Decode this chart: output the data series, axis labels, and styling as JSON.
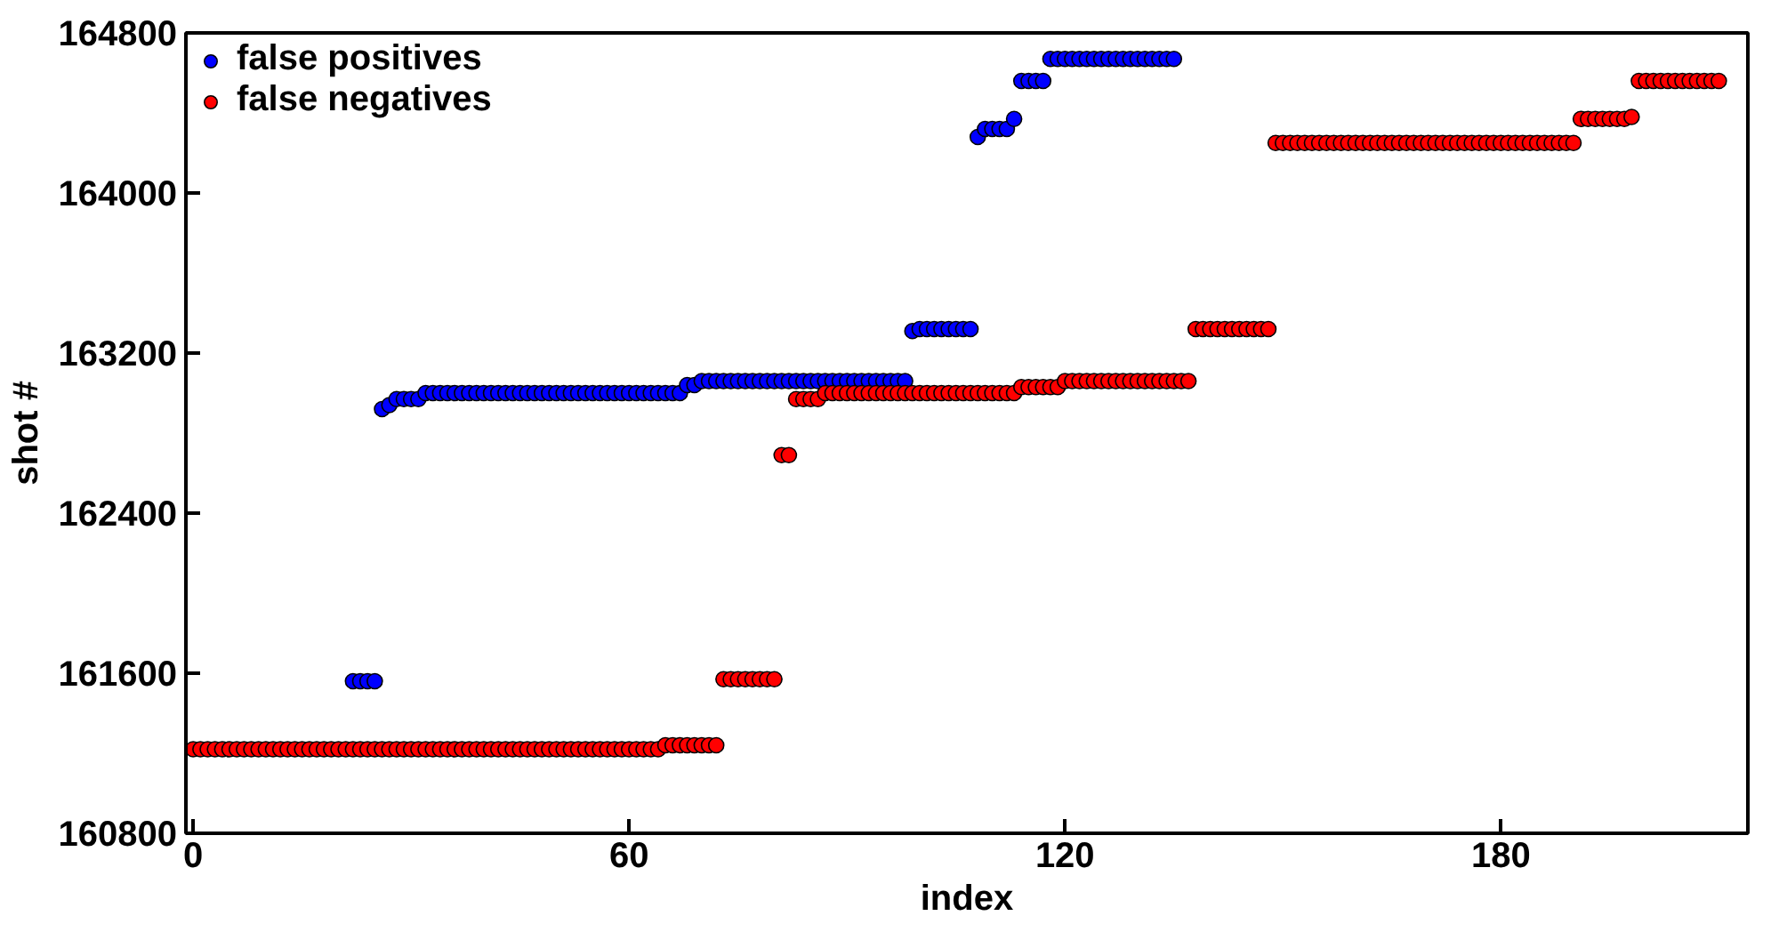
{
  "chart_data": {
    "type": "scatter",
    "xlabel": "index",
    "ylabel": "shot #",
    "xlim": [
      -1,
      214
    ],
    "ylim": [
      160800,
      164800
    ],
    "xticks": [
      0,
      60,
      120,
      180
    ],
    "yticks": [
      160800,
      161600,
      162400,
      163200,
      164000,
      164800
    ],
    "grid": false,
    "legend": "top left",
    "marker": "circle",
    "x": [
      0,
      1,
      2,
      3,
      4,
      5,
      6,
      7,
      8,
      9,
      10,
      11,
      12,
      13,
      14,
      15,
      16,
      17,
      18,
      19,
      20,
      21,
      22,
      23,
      24,
      25,
      26,
      27,
      28,
      29,
      30,
      31,
      32,
      33,
      34,
      35,
      36,
      37,
      38,
      39,
      40,
      41,
      42,
      43,
      44,
      45,
      46,
      47,
      48,
      49,
      50,
      51,
      52,
      53,
      54,
      55,
      56,
      57,
      58,
      59,
      60,
      61,
      62,
      63,
      64,
      65,
      66,
      67,
      68,
      69,
      70,
      71,
      72,
      73,
      74,
      75,
      76,
      77,
      78,
      79,
      80,
      81,
      82,
      83,
      84,
      85,
      86,
      87,
      88,
      89,
      90,
      91,
      92,
      93,
      94,
      95,
      96,
      97,
      98,
      99,
      100,
      101,
      102,
      103,
      104,
      105,
      106,
      107,
      108,
      109,
      110,
      111,
      112,
      113,
      114,
      115,
      116,
      117,
      118,
      119,
      120,
      121,
      122,
      123,
      124,
      125,
      126,
      127,
      128,
      129,
      130,
      131,
      132,
      133,
      134,
      135,
      136,
      137,
      138,
      139,
      140,
      141,
      142,
      143,
      144,
      145,
      146,
      147,
      148,
      149,
      150,
      151,
      152,
      153,
      154,
      155,
      156,
      157,
      158,
      159,
      160,
      161,
      162,
      163,
      164,
      165,
      166,
      167,
      168,
      169,
      170,
      171,
      172,
      173,
      174,
      175,
      176,
      177,
      178,
      179,
      180,
      181,
      182,
      183,
      184,
      185,
      186,
      187,
      188,
      189,
      190,
      191,
      192,
      193,
      194,
      195,
      196,
      197,
      198,
      199,
      200,
      201,
      202,
      203,
      204,
      205,
      206,
      207,
      208,
      209,
      210
    ],
    "series": [
      {
        "name": "false positives",
        "color": "#0000ff",
        "values": [
          null,
          null,
          null,
          null,
          null,
          null,
          null,
          null,
          null,
          null,
          null,
          null,
          null,
          null,
          null,
          null,
          null,
          null,
          null,
          null,
          null,
          null,
          161560,
          161560,
          161560,
          161560,
          162920,
          162940,
          162970,
          162970,
          162970,
          162970,
          163000,
          163000,
          163000,
          163000,
          163000,
          163000,
          163000,
          163000,
          163000,
          163000,
          163000,
          163000,
          163000,
          163000,
          163000,
          163000,
          163000,
          163000,
          163000,
          163000,
          163000,
          163000,
          163000,
          163000,
          163000,
          163000,
          163000,
          163000,
          163000,
          163000,
          163000,
          163000,
          163000,
          163000,
          163000,
          163000,
          163040,
          163040,
          163060,
          163060,
          163060,
          163060,
          163060,
          163060,
          163060,
          163060,
          163060,
          163060,
          163060,
          163060,
          163060,
          163060,
          163060,
          163060,
          163060,
          163060,
          163060,
          163060,
          163060,
          163060,
          163060,
          163060,
          163060,
          163060,
          163060,
          163060,
          163060,
          163310,
          163320,
          163320,
          163320,
          163320,
          163320,
          163320,
          163320,
          163320,
          164280,
          164320,
          164320,
          164320,
          164320,
          164370,
          164560,
          164560,
          164560,
          164560,
          164670,
          164670,
          164670,
          164670,
          164670,
          164670,
          164670,
          164670,
          164670,
          164670,
          164670,
          164670,
          164670,
          164670,
          164670,
          164670,
          164670,
          164670,
          null,
          null,
          null,
          null,
          null,
          null,
          null,
          null,
          null,
          null,
          null,
          null,
          null,
          null,
          null,
          null,
          null,
          null,
          null,
          null,
          null,
          null,
          null,
          null,
          null,
          null,
          null,
          null,
          null,
          null,
          null,
          null,
          null,
          null,
          null,
          null,
          null,
          null,
          null,
          null,
          null,
          null,
          null,
          null,
          null,
          null,
          null,
          null,
          null,
          null,
          null,
          null,
          null,
          null,
          null,
          null,
          null,
          null,
          null,
          null,
          null,
          null,
          null,
          null,
          null,
          null,
          null,
          null,
          null,
          null,
          null,
          null,
          null,
          null,
          null
        ]
      },
      {
        "name": "false negatives",
        "color": "#ff0000",
        "values": [
          161220,
          161220,
          161220,
          161220,
          161220,
          161220,
          161220,
          161220,
          161220,
          161220,
          161220,
          161220,
          161220,
          161220,
          161220,
          161220,
          161220,
          161220,
          161220,
          161220,
          161220,
          161220,
          161220,
          161220,
          161220,
          161220,
          161220,
          161220,
          161220,
          161220,
          161220,
          161220,
          161220,
          161220,
          161220,
          161220,
          161220,
          161220,
          161220,
          161220,
          161220,
          161220,
          161220,
          161220,
          161220,
          161220,
          161220,
          161220,
          161220,
          161220,
          161220,
          161220,
          161220,
          161220,
          161220,
          161220,
          161220,
          161220,
          161220,
          161220,
          161220,
          161220,
          161220,
          161220,
          161220,
          161240,
          161240,
          161240,
          161240,
          161240,
          161240,
          161240,
          161240,
          161570,
          161570,
          161570,
          161570,
          161570,
          161570,
          161570,
          161570,
          162690,
          162690,
          162970,
          162970,
          162970,
          162970,
          163000,
          163000,
          163000,
          163000,
          163000,
          163000,
          163000,
          163000,
          163000,
          163000,
          163000,
          163000,
          163000,
          163000,
          163000,
          163000,
          163000,
          163000,
          163000,
          163000,
          163000,
          163000,
          163000,
          163000,
          163000,
          163000,
          163000,
          163030,
          163030,
          163030,
          163030,
          163030,
          163030,
          163060,
          163060,
          163060,
          163060,
          163060,
          163060,
          163060,
          163060,
          163060,
          163060,
          163060,
          163060,
          163060,
          163060,
          163060,
          163060,
          163060,
          163060,
          163320,
          163320,
          163320,
          163320,
          163320,
          163320,
          163320,
          163320,
          163320,
          163320,
          163320,
          164250,
          164250,
          164250,
          164250,
          164250,
          164250,
          164250,
          164250,
          164250,
          164250,
          164250,
          164250,
          164250,
          164250,
          164250,
          164250,
          164250,
          164250,
          164250,
          164250,
          164250,
          164250,
          164250,
          164250,
          164250,
          164250,
          164250,
          164250,
          164250,
          164250,
          164250,
          164250,
          164250,
          164250,
          164250,
          164250,
          164250,
          164250,
          164250,
          164250,
          164250,
          164250,
          164370,
          164370,
          164370,
          164370,
          164370,
          164370,
          164370,
          164380,
          164560,
          164560,
          164560,
          164560,
          164560,
          164560,
          164560,
          164560,
          164560,
          164560,
          164560,
          164560
        ]
      }
    ]
  }
}
